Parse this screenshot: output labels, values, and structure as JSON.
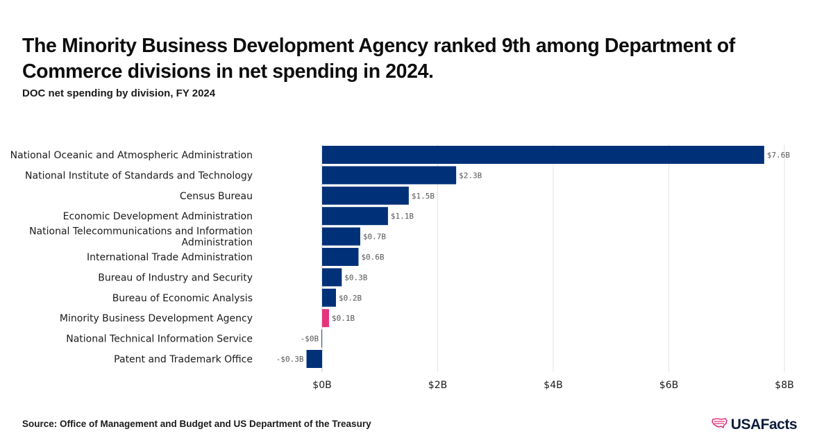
{
  "title": "The Minority Business Development Agency ranked 9th among Department of Commerce divisions in net spending in 2024.",
  "subtitle": "DOC net spending by division, FY 2024",
  "source": "Source: Office of Management and Budget and US Department of the Treasury",
  "logo": {
    "text": "USAFacts",
    "icon": "usa-map-icon"
  },
  "colors": {
    "bar": "#003178",
    "highlight": "#e5337c",
    "grid": "#e3e3e3",
    "zero_line": "#c8c8c8"
  },
  "chart_data": {
    "type": "bar",
    "orientation": "horizontal",
    "categories": [
      "National Oceanic and Atmospheric Administration",
      "National Institute of Standards and Technology",
      "Census Bureau",
      "Economic Development Administration",
      "National Telecommunications and Information Administration",
      "International Trade Administration",
      "Bureau of Industry and Security",
      "Bureau of Economic Analysis",
      "Minority Business Development Agency",
      "National Technical Information Service",
      "Patent and Trademark Office"
    ],
    "category_label_lines": [
      [
        "National Oceanic and Atmospheric Administration"
      ],
      [
        "National Institute of Standards and Technology"
      ],
      [
        "Census Bureau"
      ],
      [
        "Economic Development Administration"
      ],
      [
        "National Telecommunications and Information",
        "Administration"
      ],
      [
        "International Trade Administration"
      ],
      [
        "Bureau of Industry and Security"
      ],
      [
        "Bureau of Economic Analysis"
      ],
      [
        "Minority Business Development Agency"
      ],
      [
        "National Technical Information Service"
      ],
      [
        "Patent and Trademark Office"
      ]
    ],
    "values": [
      7.65,
      2.32,
      1.5,
      1.14,
      0.66,
      0.63,
      0.34,
      0.24,
      0.12,
      -0.01,
      -0.27
    ],
    "value_labels": [
      "$7.6B",
      "$2.3B",
      "$1.5B",
      "$1.1B",
      "$0.7B",
      "$0.6B",
      "$0.3B",
      "$0.2B",
      "$0.1B",
      "-$0B",
      "-$0.3B"
    ],
    "highlight_index": 8,
    "x_ticks": [
      0,
      2,
      4,
      6,
      8
    ],
    "x_tick_labels": [
      "$0B",
      "$2B",
      "$4B",
      "$6B",
      "$8B"
    ],
    "xlim": [
      -0.3,
      8
    ],
    "unit": "billions USD",
    "grid": "vertical",
    "legend": "none"
  }
}
